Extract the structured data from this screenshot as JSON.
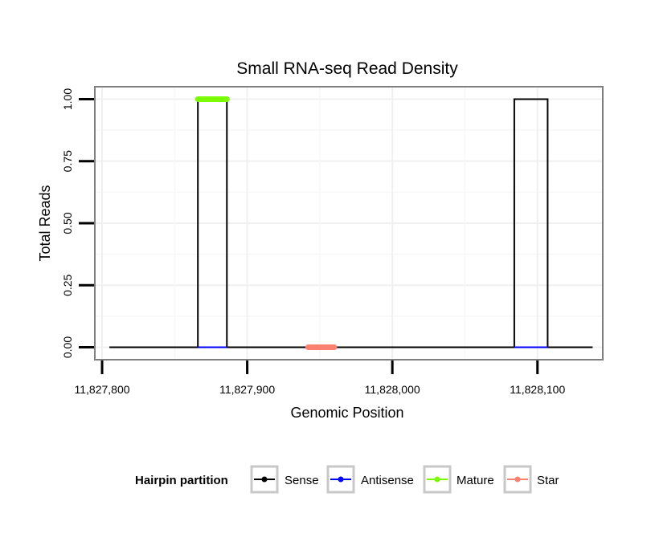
{
  "chart_data": {
    "type": "line",
    "title": "Small RNA-seq Read Density",
    "xlabel": "Genomic Position",
    "ylabel": "Total Reads",
    "xlim": [
      11827795,
      11828145
    ],
    "ylim": [
      -0.05,
      1.05
    ],
    "x_ticks": [
      11827800,
      11827900,
      11828000,
      11828100
    ],
    "x_tick_labels": [
      "11,827,800",
      "11,827,900",
      "11,828,000",
      "11,828,100"
    ],
    "y_ticks": [
      0,
      0.25,
      0.5,
      0.75,
      1.0
    ],
    "y_tick_labels": [
      "0.00",
      "0.25",
      "0.50",
      "0.75",
      "1.00"
    ],
    "grid": true,
    "legend_position": "bottom",
    "legend_title": "Hairpin partition",
    "series": [
      {
        "name": "Sense",
        "color": "#000000",
        "x": [
          11827805,
          11827866,
          11827866,
          11827886,
          11827886,
          11828084,
          11828084,
          11828107,
          11828107,
          11828138
        ],
        "y": [
          0,
          0,
          1,
          1,
          0,
          0,
          1,
          1,
          0,
          0
        ]
      },
      {
        "name": "Antisense",
        "color": "#0000ff",
        "segments": [
          [
            11827866,
            11827886
          ],
          [
            11828084,
            11828107
          ]
        ],
        "value": 0
      },
      {
        "name": "Mature",
        "color": "#7cfc00",
        "segments": [
          [
            11827866,
            11827886
          ]
        ],
        "value": 1
      },
      {
        "name": "Star",
        "color": "#fa8072",
        "segments": [
          [
            11827942,
            11827960
          ]
        ],
        "value": 0
      }
    ]
  }
}
